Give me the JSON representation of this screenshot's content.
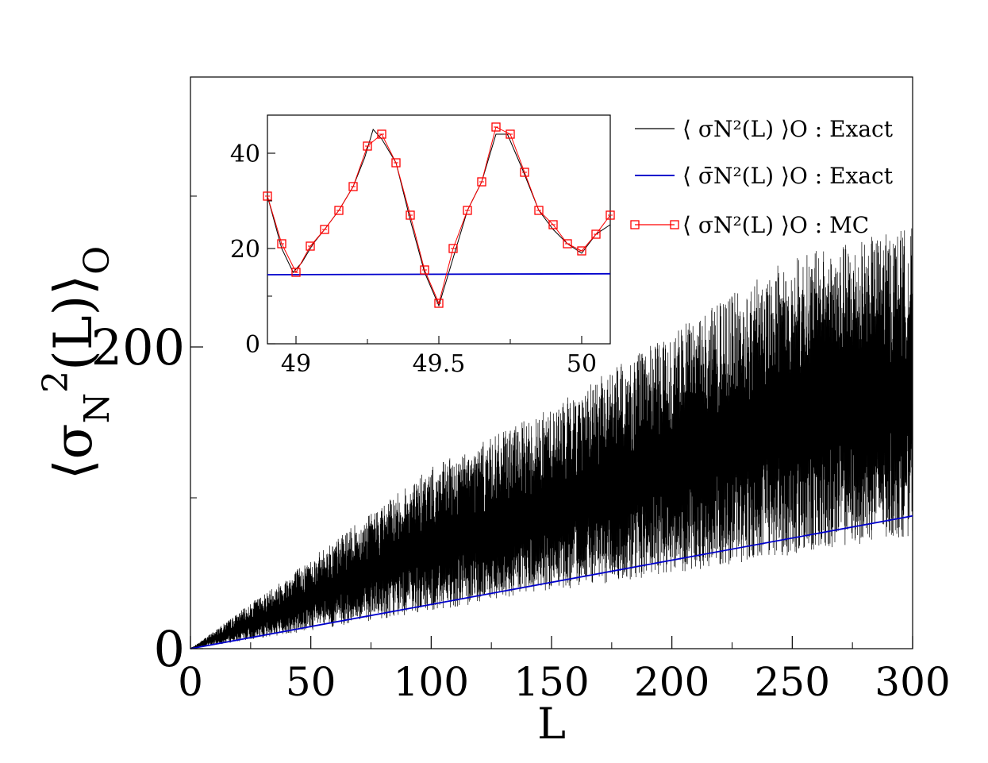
{
  "main": {
    "ylabel_parts": {
      "open": "⟨",
      "sigma": "σ",
      "sub": "N",
      "sup": "2",
      "arg": "(L)",
      "close": "⟩",
      "outsub": "O"
    },
    "xlabel": "L"
  },
  "legend": [
    {
      "text": "⟨ σN²(L) ⟩O : Exact",
      "color": "#000000"
    },
    {
      "text": "⟨ σ̄N²(L) ⟩O : Exact",
      "color": "#0000cc"
    },
    {
      "text": "⟨ σN²(L) ⟩O : MC",
      "color": "#ff0000",
      "marker": "open-square"
    }
  ],
  "colors": {
    "exact": "#000000",
    "mean": "#0000cc",
    "mc": "#ff0000"
  },
  "chart_data": [
    {
      "type": "line",
      "role": "main",
      "xlabel": "L",
      "ylabel": "⟨σN²(L)⟩O",
      "xlim": [
        0,
        300
      ],
      "ylim": [
        0,
        400
      ],
      "xticks": [
        0,
        50,
        100,
        150,
        200,
        250,
        300
      ],
      "yticks_labeled": [
        0,
        200
      ],
      "yticks_minor": [
        100,
        300
      ],
      "grid": false,
      "series": [
        {
          "name": "⟨ σN²(L) ⟩O : Exact",
          "style": "rapidly oscillating",
          "upper_envelope": {
            "x": [
              0,
              50,
              100,
              150,
              200,
              250,
              300
            ],
            "y": [
              0,
              60,
              120,
              160,
              210,
              260,
              280
            ]
          },
          "lower_envelope": {
            "x": [
              0,
              50,
              100,
              150,
              200,
              250,
              300
            ],
            "y": [
              0,
              12,
              25,
              38,
              50,
              62,
              75
            ]
          }
        },
        {
          "name": "⟨ σ̄N²(L) ⟩O : Exact",
          "x": [
            0,
            300
          ],
          "y": [
            0,
            88
          ]
        }
      ]
    },
    {
      "type": "line",
      "role": "inset",
      "xlim": [
        48.9,
        50.1
      ],
      "ylim": [
        0,
        48
      ],
      "xticks": [
        49,
        49.5,
        50
      ],
      "yticks": [
        0,
        20,
        40
      ],
      "series": [
        {
          "name": "⟨ σN²(L) ⟩O : Exact",
          "x": [
            48.9,
            48.95,
            48.99,
            49.02,
            49.06,
            49.1,
            49.15,
            49.2,
            49.24,
            49.27,
            49.3,
            49.35,
            49.4,
            49.45,
            49.5,
            49.55,
            49.6,
            49.65,
            49.7,
            49.74,
            49.79,
            49.85,
            49.9,
            49.95,
            50.0,
            50.05,
            50.1
          ],
          "y": [
            31,
            20,
            15,
            17,
            21,
            24,
            28,
            33,
            39,
            45,
            43,
            38,
            26,
            15,
            8,
            18,
            28,
            34,
            44,
            44,
            37,
            28,
            24,
            21,
            19,
            23,
            25
          ]
        },
        {
          "name": "⟨ σ̄N²(L) ⟩O : Exact",
          "x": [
            48.9,
            50.1
          ],
          "y": [
            14.5,
            14.7
          ]
        },
        {
          "name": "⟨ σN²(L) ⟩O : MC",
          "x": [
            48.9,
            48.95,
            49.0,
            49.05,
            49.1,
            49.15,
            49.2,
            49.25,
            49.3,
            49.35,
            49.4,
            49.45,
            49.5,
            49.55,
            49.6,
            49.65,
            49.7,
            49.75,
            49.8,
            49.85,
            49.9,
            49.95,
            50.0,
            50.05,
            50.1
          ],
          "y": [
            31,
            21,
            15,
            20.5,
            24,
            28,
            33,
            41.5,
            44,
            38,
            27,
            15.5,
            8.5,
            20,
            28,
            34,
            45.5,
            44,
            36,
            28,
            25,
            21,
            19.5,
            23,
            27
          ]
        }
      ]
    }
  ]
}
